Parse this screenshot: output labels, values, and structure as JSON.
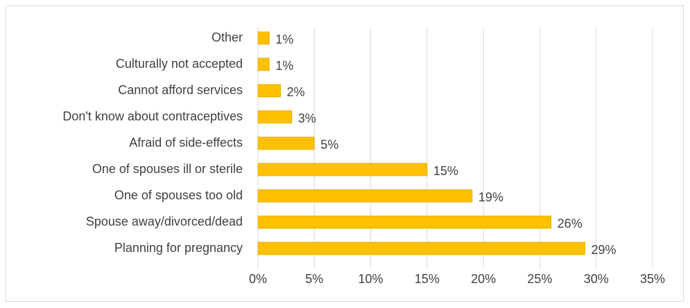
{
  "chart_data": {
    "type": "bar",
    "orientation": "horizontal",
    "categories": [
      "Other",
      "Culturally not accepted",
      "Cannot afford services",
      "Don't know about contraceptives",
      "Afraid of side-effects",
      "One of spouses ill or sterile",
      "One of spouses too old",
      "Spouse away/divorced/dead",
      "Planning for pregnancy"
    ],
    "values": [
      1,
      1,
      2,
      3,
      5,
      15,
      19,
      26,
      29
    ],
    "value_labels": [
      "1%",
      "1%",
      "2%",
      "3%",
      "5%",
      "15%",
      "19%",
      "26%",
      "29%"
    ],
    "x_ticks": [
      "0%",
      "5%",
      "10%",
      "15%",
      "20%",
      "25%",
      "30%",
      "35%"
    ],
    "xlim": [
      0,
      35
    ],
    "grid": true,
    "title": "",
    "xlabel": "",
    "ylabel": "",
    "bar_color": "#ffc000"
  }
}
